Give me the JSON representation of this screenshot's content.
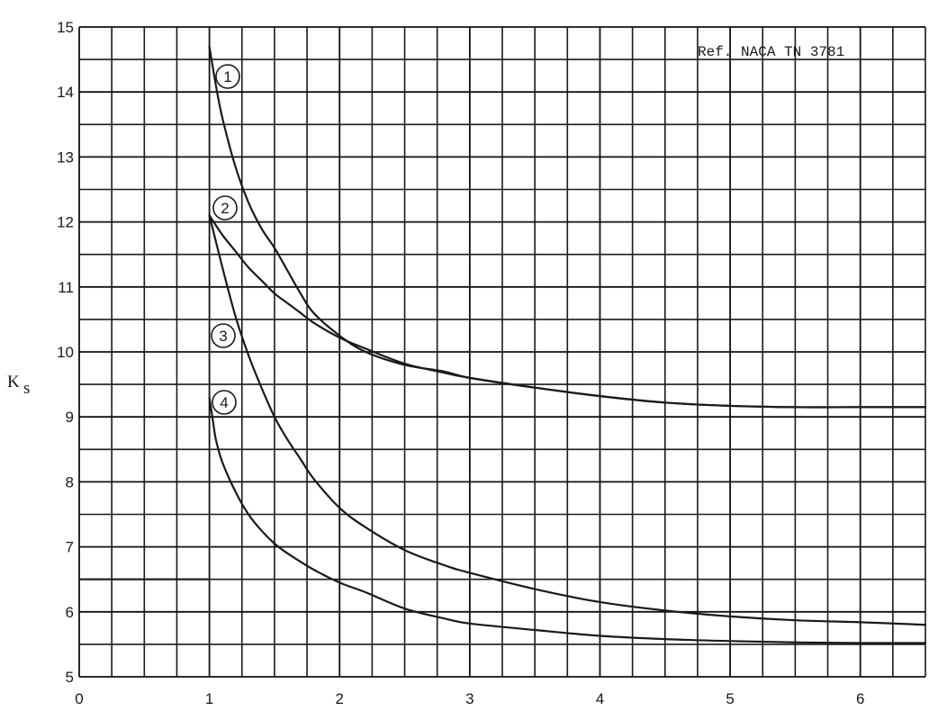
{
  "chart_data": {
    "type": "line",
    "title": "",
    "xlabel": "",
    "ylabel": "K",
    "ylabel_subscript": "s",
    "reference_note": "Ref. NACA TN 3781",
    "xlim": [
      0,
      6.5
    ],
    "ylim": [
      5,
      15
    ],
    "x_ticks": [
      "0",
      "1",
      "2",
      "3",
      "4",
      "5",
      "6"
    ],
    "y_ticks": [
      "5",
      "6",
      "7",
      "8",
      "9",
      "10",
      "11",
      "12",
      "13",
      "14",
      "15"
    ],
    "grid": true,
    "series": [
      {
        "name": "1",
        "x": [
          1.0,
          1.05,
          1.1,
          1.2,
          1.3,
          1.4,
          1.5,
          1.6,
          1.7,
          1.8,
          2.0,
          2.2,
          2.5,
          2.8,
          3.0,
          3.5,
          4.0,
          4.5,
          5.0,
          5.5,
          6.0,
          6.5
        ],
        "values": [
          14.7,
          14.1,
          13.6,
          12.85,
          12.3,
          11.9,
          11.6,
          11.25,
          10.9,
          10.6,
          10.25,
          10.0,
          9.8,
          9.7,
          9.6,
          9.45,
          9.32,
          9.22,
          9.17,
          9.15,
          9.15,
          9.15
        ]
      },
      {
        "name": "2",
        "x": [
          1.0,
          1.1,
          1.2,
          1.3,
          1.4,
          1.5,
          1.6,
          1.7,
          1.8,
          2.0,
          2.2,
          2.5,
          2.8,
          3.0,
          3.5,
          4.0,
          4.5,
          5.0,
          5.5,
          6.0,
          6.5
        ],
        "values": [
          12.1,
          11.8,
          11.55,
          11.3,
          11.1,
          10.9,
          10.75,
          10.6,
          10.45,
          10.22,
          10.05,
          9.82,
          9.68,
          9.6,
          9.45,
          9.32,
          9.22,
          9.17,
          9.15,
          9.15,
          9.15
        ]
      },
      {
        "name": "3",
        "x": [
          1.0,
          1.1,
          1.2,
          1.3,
          1.4,
          1.5,
          1.6,
          1.7,
          1.8,
          2.0,
          2.2,
          2.5,
          2.8,
          3.0,
          3.5,
          4.0,
          4.5,
          5.0,
          5.5,
          6.0,
          6.5
        ],
        "values": [
          12.1,
          11.3,
          10.55,
          9.95,
          9.45,
          9.0,
          8.65,
          8.35,
          8.05,
          7.6,
          7.3,
          6.95,
          6.72,
          6.6,
          6.35,
          6.15,
          6.02,
          5.93,
          5.87,
          5.84,
          5.8
        ]
      },
      {
        "name": "4",
        "x": [
          1.0,
          1.03,
          1.05,
          1.1,
          1.2,
          1.3,
          1.4,
          1.5,
          1.6,
          1.8,
          2.0,
          2.2,
          2.5,
          2.8,
          3.0,
          3.5,
          4.0,
          4.5,
          5.0,
          5.5,
          6.0,
          6.5
        ],
        "values": [
          9.3,
          8.9,
          8.65,
          8.3,
          7.85,
          7.5,
          7.25,
          7.05,
          6.9,
          6.65,
          6.45,
          6.3,
          6.05,
          5.9,
          5.82,
          5.72,
          5.63,
          5.58,
          5.55,
          5.53,
          5.52,
          5.52
        ]
      }
    ],
    "extra_lines": [
      {
        "x": [
          0,
          1.0
        ],
        "values": [
          6.5,
          6.5
        ]
      }
    ]
  }
}
